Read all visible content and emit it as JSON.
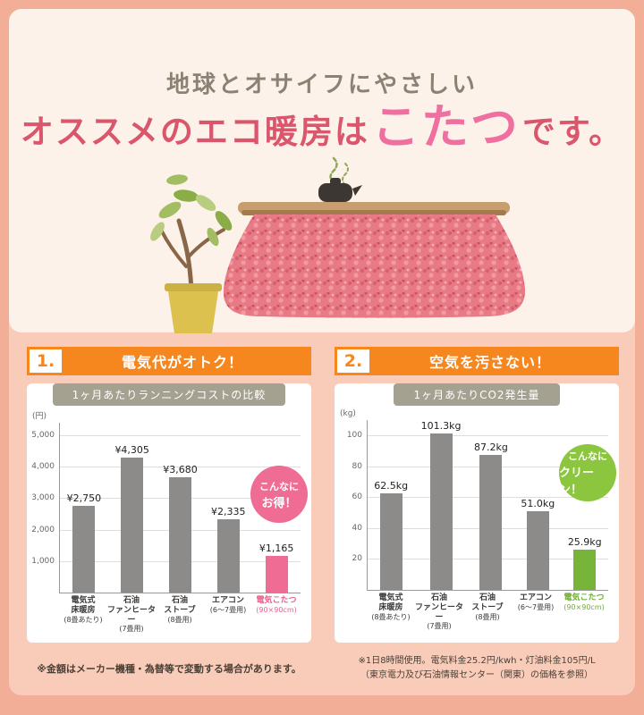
{
  "hero": {
    "line1": "地球とオサイフにやさしい",
    "line2_pre": "オススメのエコ暖房は",
    "line2_highlight": "こたつ",
    "line2_post": "です。"
  },
  "sections": [
    {
      "number": "1.",
      "heading": "電気代がオトク！",
      "badge_line1": "こんなに",
      "badge_line2": "お得！",
      "badge_color": "#ef6c95"
    },
    {
      "number": "2.",
      "heading": "空気を汚さない！",
      "badge_line1": "こんなに",
      "badge_line2": "クリーン！",
      "badge_color": "#8cc63e"
    }
  ],
  "footnotes": {
    "left": "※金額はメーカー機種・為替等で変動する場合があります。",
    "right_line1": "※1日8時間使用。電気料金25.2円/kwh・灯油料金105円/L",
    "right_line2": "（東京電力及び石油情報センター（関東）の価格を参照）"
  },
  "colors": {
    "frame": "#f3ae97",
    "background": "#f9ccba",
    "card": "#fdf2ea",
    "accent_orange": "#f6871f",
    "title_gray": "#8b8273",
    "title_red": "#d9566c",
    "title_pink": "#ee6fa0",
    "panel_header_gray": "#a5a191",
    "bar_gray": "#8d8b89",
    "bar_pink": "#ef6c95",
    "bar_green": "#76b43a"
  },
  "chart_data": [
    {
      "type": "bar",
      "title": "1ヶ月あたりランニングコストの比較",
      "unit_label": "(円)",
      "ylabel": "円",
      "ylim": [
        0,
        5400
      ],
      "ymax": 5400,
      "grid": true,
      "yticks": [
        {
          "v": 1000,
          "label": "1,000"
        },
        {
          "v": 2000,
          "label": "2,000"
        },
        {
          "v": 3000,
          "label": "3,000"
        },
        {
          "v": 4000,
          "label": "4,000"
        },
        {
          "v": 5000,
          "label": "5,000"
        }
      ],
      "categories": [
        {
          "lines": [
            "電気式",
            "床暖房"
          ],
          "sub": "(8畳あたり)"
        },
        {
          "lines": [
            "石油",
            "ファンヒーター"
          ],
          "sub": "(7畳用)"
        },
        {
          "lines": [
            "石油",
            "ストーブ"
          ],
          "sub": "(8畳用)"
        },
        {
          "lines": [
            "エアコン"
          ],
          "sub": "(6〜7畳用)"
        },
        {
          "lines": [
            "電気こたつ"
          ],
          "sub": "(90×90cm)"
        }
      ],
      "values": [
        2750,
        4305,
        3680,
        2335,
        1165
      ],
      "value_labels": [
        "¥2,750",
        "¥4,305",
        "¥3,680",
        "¥2,335",
        "¥1,165"
      ],
      "highlight_index": 4,
      "bar_color": "#8d8b89",
      "highlight_color": "#ef6c95",
      "highlight_text_color": "#e7618d"
    },
    {
      "type": "bar",
      "title": "1ヶ月あたりCO2発生量",
      "unit_label": "(kg)",
      "ylabel": "kg",
      "ylim": [
        0,
        110
      ],
      "ymax": 110,
      "grid": true,
      "yticks": [
        {
          "v": 20,
          "label": "20"
        },
        {
          "v": 40,
          "label": "40"
        },
        {
          "v": 60,
          "label": "60"
        },
        {
          "v": 80,
          "label": "80"
        },
        {
          "v": 100,
          "label": "100"
        }
      ],
      "categories": [
        {
          "lines": [
            "電気式",
            "床暖房"
          ],
          "sub": "(8畳あたり)"
        },
        {
          "lines": [
            "石油",
            "ファンヒーター"
          ],
          "sub": "(7畳用)"
        },
        {
          "lines": [
            "石油",
            "ストーブ"
          ],
          "sub": "(8畳用)"
        },
        {
          "lines": [
            "エアコン"
          ],
          "sub": "(6〜7畳用)"
        },
        {
          "lines": [
            "電気こたつ"
          ],
          "sub": "(90×90cm)"
        }
      ],
      "values": [
        62.5,
        101.3,
        87.2,
        51.0,
        25.9
      ],
      "value_labels": [
        "62.5kg",
        "101.3kg",
        "87.2kg",
        "51.0kg",
        "25.9kg"
      ],
      "highlight_index": 4,
      "bar_color": "#8d8b89",
      "highlight_color": "#76b43a",
      "highlight_text_color": "#6fae35"
    }
  ]
}
